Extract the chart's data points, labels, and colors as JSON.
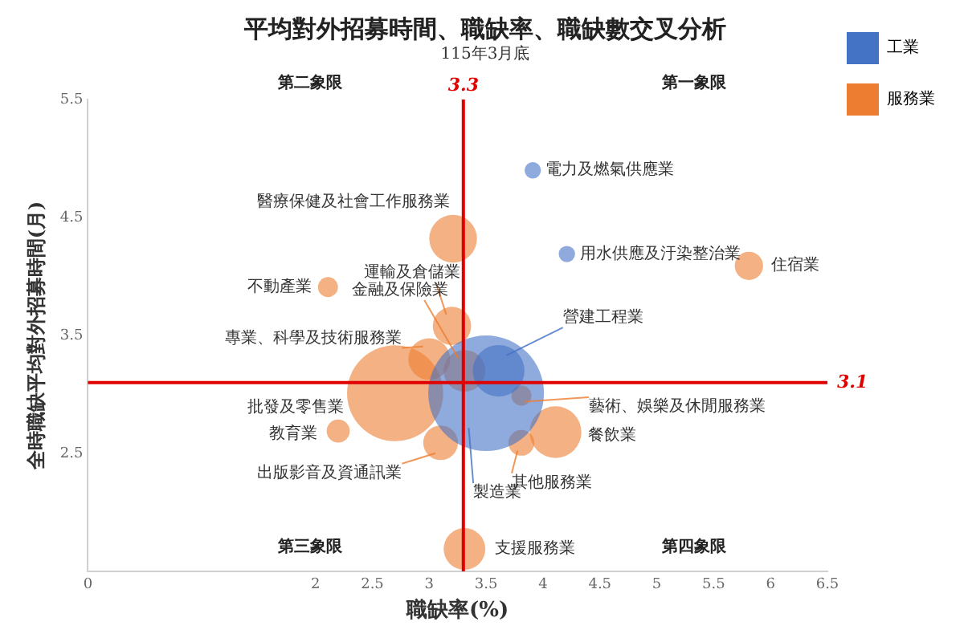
{
  "chart_data": {
    "type": "bubble",
    "title": "平均對外招募時間、職缺率、職缺數交叉分析",
    "subtitle": "115年3月底",
    "xlabel": "職缺率(%)",
    "ylabel": "全時職缺平均對外招募時間(月)",
    "xlim": [
      0,
      6.5
    ],
    "xticks": [
      0,
      2,
      2.5,
      3,
      3.5,
      4,
      4.5,
      5,
      5.5,
      6,
      6.5
    ],
    "ylim": [
      1.5,
      5.5
    ],
    "yticks": [
      2.5,
      3.5,
      4.5,
      5.5
    ],
    "grid": false,
    "legend": "top right",
    "series": [
      {
        "name": "工業",
        "color": "#4472c4",
        "x": [
          3.91,
          4.21,
          3.61,
          3.5
        ],
        "values": [
          4.9,
          4.19,
          3.2,
          3.01
        ],
        "sizes": [
          0.02,
          0.02,
          0.2,
          1
        ],
        "value_labels": [
          "電力及燃氣供應業",
          "用水供應及汙染整治業",
          "營建工程業",
          "製造業"
        ]
      },
      {
        "name": "服務業",
        "color": "#ed7d31",
        "x": [
          5.81,
          3.21,
          2.11,
          3.2,
          3.31,
          3.0,
          2.7,
          2.2,
          3.1,
          3.81,
          4.11,
          3.81,
          3.31
        ],
        "values": [
          4.09,
          4.32,
          3.91,
          3.58,
          3.2,
          3.3,
          3.01,
          2.69,
          2.59,
          2.99,
          2.68,
          2.59,
          1.69
        ],
        "sizes": [
          0.06,
          0.17,
          0.03,
          0.11,
          0.13,
          0.13,
          0.69,
          0.04,
          0.09,
          0.03,
          0.2,
          0.05,
          0.13
        ],
        "value_labels": [
          "住宿業",
          "醫療保健及社會工作服務業",
          "不動產業",
          "運輸及倉儲業",
          "金融及保險業",
          "專業、科學及技術服務業",
          "批發及零售業",
          "教育業",
          "出版影音及資通訊業",
          "藝術、娛樂及休閒服務業",
          "餐飲業",
          "其他服務業",
          "支援服務業"
        ]
      }
    ],
    "ref_lines": [
      {
        "axis": "x",
        "value": 3.3,
        "label": "3.3",
        "color": "#e00000"
      },
      {
        "axis": "y",
        "value": 3.1,
        "label": "3.1",
        "color": "#e00000"
      }
    ],
    "annotations": [
      "第二象限",
      "第一象限",
      "第三象限",
      "第四象限"
    ]
  }
}
